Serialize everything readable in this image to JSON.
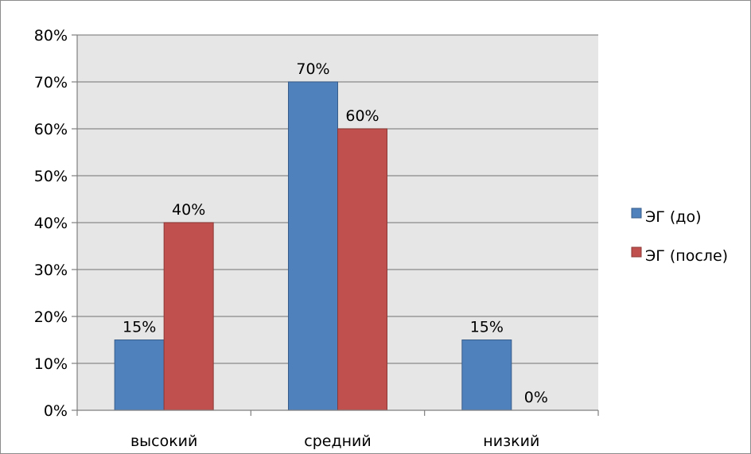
{
  "chart_data": {
    "type": "bar",
    "categories": [
      "высокий",
      "средний",
      "низкий"
    ],
    "series": [
      {
        "name": "ЭГ (до)",
        "values": [
          15,
          70,
          15
        ],
        "labels": [
          "15%",
          "70%",
          "15%"
        ],
        "color": "#4f81bd",
        "stroke": "#385d8a"
      },
      {
        "name": "ЭГ (после)",
        "values": [
          40,
          60,
          0
        ],
        "labels": [
          "40%",
          "60%",
          "0%"
        ],
        "color": "#c0504d",
        "stroke": "#8c3836"
      }
    ],
    "ylim": [
      0,
      80
    ],
    "yticks": [
      0,
      10,
      20,
      30,
      40,
      50,
      60,
      70,
      80
    ],
    "ytick_labels": [
      "0%",
      "10%",
      "20%",
      "30%",
      "40%",
      "50%",
      "60%",
      "70%",
      "80%"
    ],
    "grid": true,
    "plot_background": "#e6e6e6",
    "legend_position": "right"
  }
}
